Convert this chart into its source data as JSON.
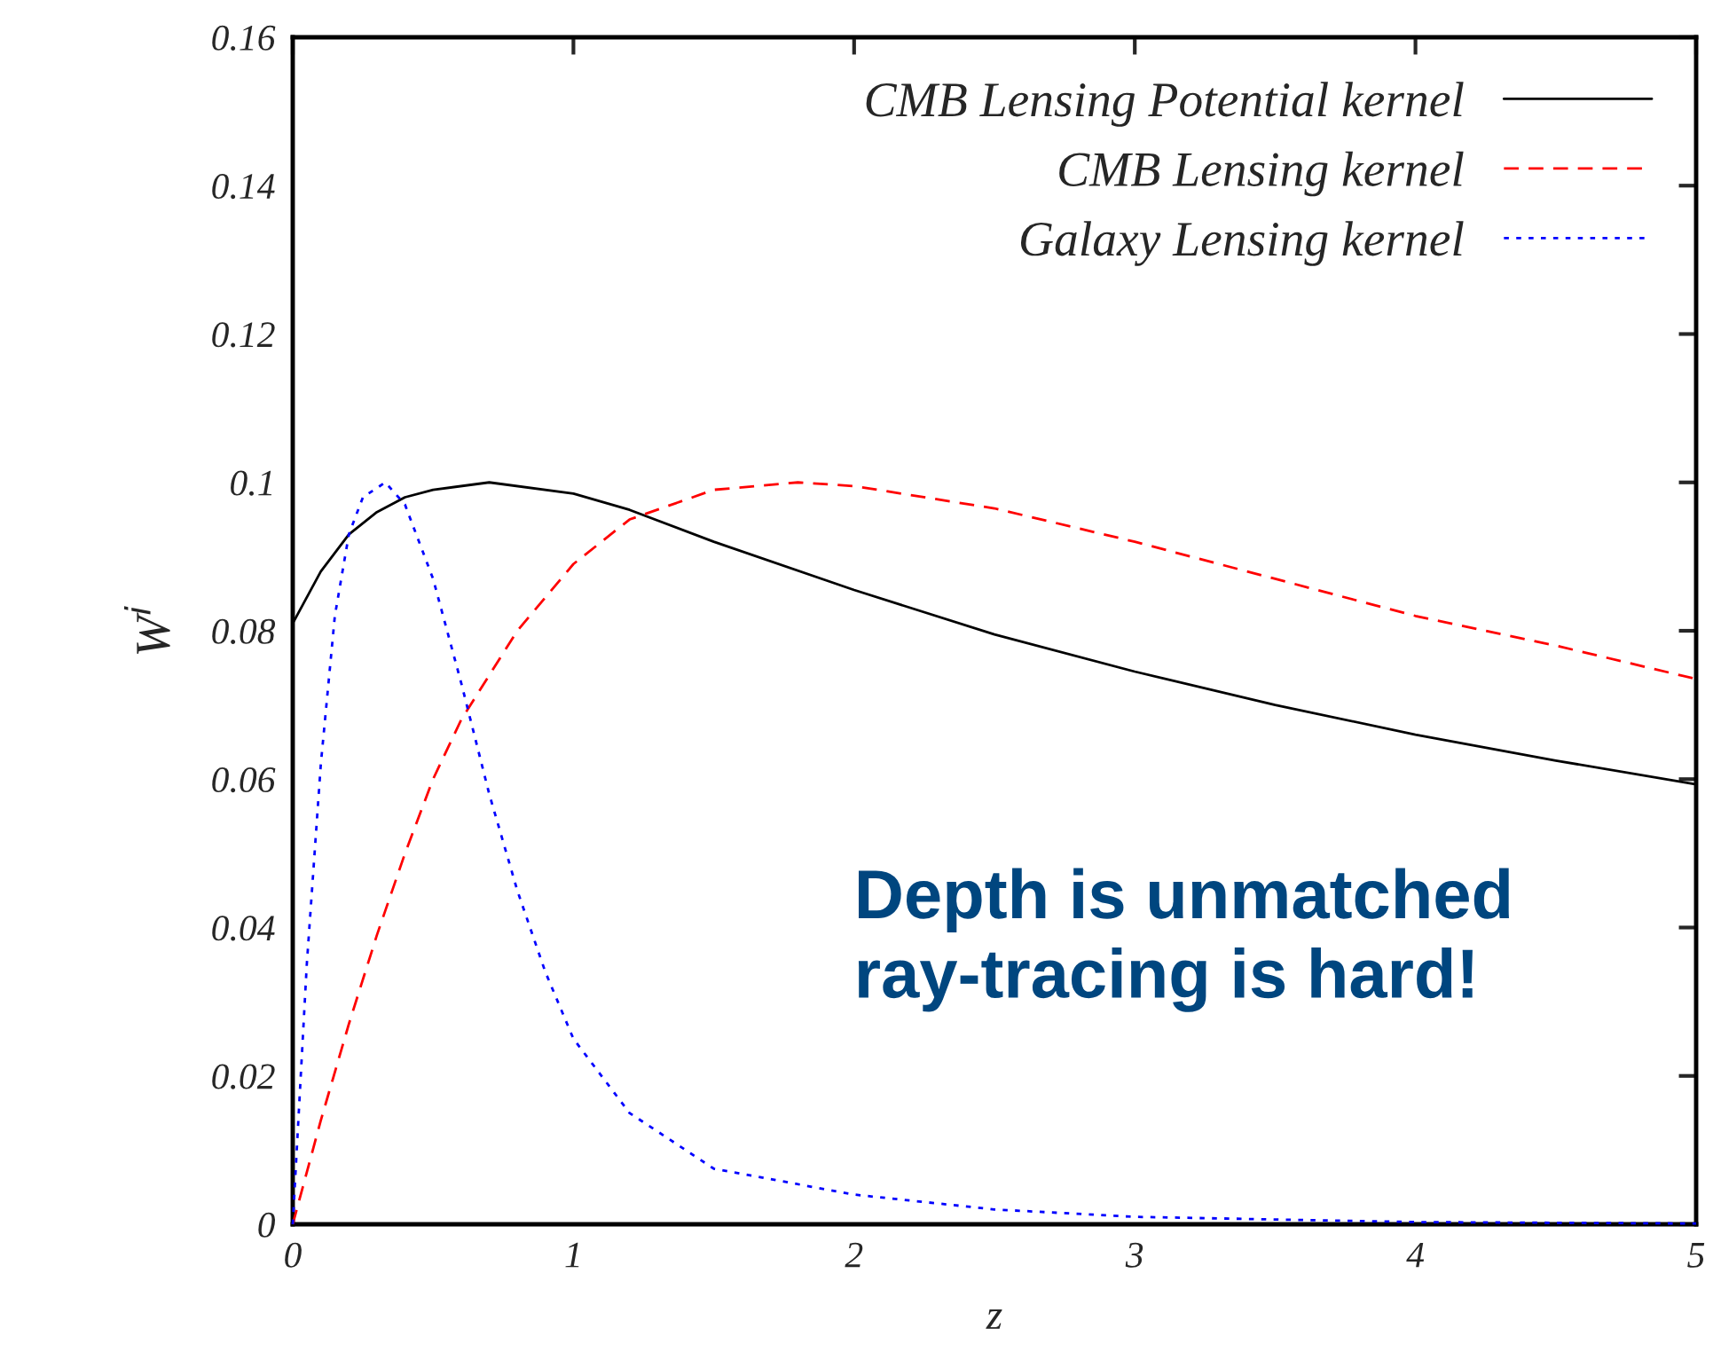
{
  "chart_data": {
    "type": "line",
    "xlabel": "z",
    "ylabel": "W$^{i}$",
    "xlim": [
      0,
      5
    ],
    "ylim": [
      0,
      0.16
    ],
    "xticks": [
      0,
      1,
      2,
      3,
      4,
      5
    ],
    "yticks": [
      0,
      0.02,
      0.04,
      0.06,
      0.08,
      0.1,
      0.12,
      0.14,
      0.16
    ],
    "grid": false,
    "legend": "top right",
    "marker": "none",
    "series": [
      {
        "name": "CMB Lensing Potential kernel",
        "color": "#000000",
        "line_style": "solid",
        "x": [
          0,
          0.1,
          0.2,
          0.3,
          0.4,
          0.5,
          0.7,
          1.0,
          1.2,
          1.5,
          2,
          2.5,
          3,
          3.5,
          4,
          4.5,
          5
        ],
        "values": [
          0.081,
          0.088,
          0.093,
          0.096,
          0.098,
          0.099,
          0.1,
          0.0985,
          0.0963,
          0.092,
          0.0855,
          0.0795,
          0.0745,
          0.07,
          0.066,
          0.0625,
          0.0593
        ]
      },
      {
        "name": "CMB Lensing kernel",
        "color": "#ff0000",
        "line_style": "dashed",
        "x": [
          0,
          0.1,
          0.2,
          0.3,
          0.4,
          0.5,
          0.6,
          0.8,
          1.0,
          1.2,
          1.5,
          1.8,
          2,
          2.5,
          3,
          3.5,
          4,
          4.5,
          5
        ],
        "values": [
          0,
          0.014,
          0.027,
          0.039,
          0.05,
          0.06,
          0.068,
          0.08,
          0.089,
          0.095,
          0.099,
          0.1,
          0.0995,
          0.0965,
          0.092,
          0.087,
          0.082,
          0.078,
          0.0735
        ]
      },
      {
        "name": "Galaxy Lensing kernel",
        "color": "#0000ff",
        "line_style": "dotted",
        "x": [
          0,
          0.05,
          0.1,
          0.15,
          0.2,
          0.25,
          0.33,
          0.4,
          0.5,
          0.6,
          0.7,
          0.8,
          0.9,
          1.0,
          1.2,
          1.5,
          2,
          2.5,
          3,
          4,
          5
        ],
        "values": [
          0,
          0.035,
          0.062,
          0.082,
          0.093,
          0.098,
          0.1,
          0.097,
          0.087,
          0.073,
          0.058,
          0.045,
          0.034,
          0.025,
          0.015,
          0.0075,
          0.004,
          0.002,
          0.001,
          0.0003,
          0.0001
        ]
      }
    ],
    "annotations": [
      "Depth is unmatched\nray-tracing is hard!"
    ]
  }
}
